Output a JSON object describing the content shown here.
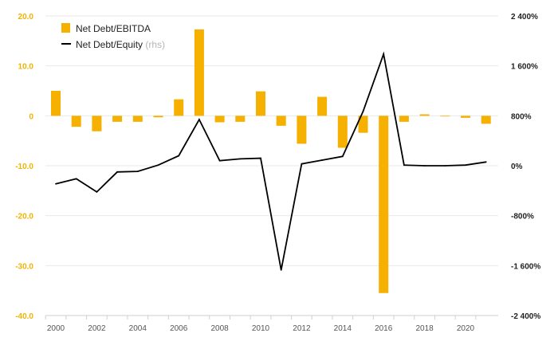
{
  "chart_data": {
    "type": "bar+line",
    "title": "",
    "x": [
      2000,
      2001,
      2002,
      2003,
      2004,
      2005,
      2006,
      2007,
      2008,
      2009,
      2010,
      2011,
      2012,
      2013,
      2014,
      2015,
      2016,
      2017,
      2018,
      2019,
      2020,
      2021
    ],
    "x_tick_labels": [
      "2000",
      "2002",
      "2004",
      "2006",
      "2008",
      "2010",
      "2012",
      "2014",
      "2016",
      "2018",
      "2020"
    ],
    "left_axis": {
      "ylim": [
        -40,
        20
      ],
      "tick_labels": [
        "20.0",
        "10.0",
        "0",
        "-10.0",
        "-20.0",
        "-30.0",
        "-40.0"
      ],
      "tick_values": [
        20,
        10,
        0,
        -10,
        -20,
        -30,
        -40
      ]
    },
    "right_axis": {
      "ylim": [
        -2400,
        2400
      ],
      "tick_labels": [
        "2 400%",
        "1 600%",
        "800%",
        "0%",
        "-800%",
        "-1 600%",
        "-2 400%"
      ],
      "tick_values": [
        2400,
        1600,
        800,
        0,
        -800,
        -1600,
        -2400
      ]
    },
    "series": [
      {
        "name": "Net Debt/EBITDA",
        "axis": "left",
        "type": "bar",
        "color": "#f5b000",
        "values": [
          5.0,
          -2.2,
          -3.1,
          -1.2,
          -1.2,
          -0.3,
          3.3,
          17.3,
          -1.3,
          -1.2,
          4.9,
          -2.0,
          -5.6,
          3.8,
          -6.4,
          -3.4,
          -35.5,
          -1.2,
          0.3,
          -0.1,
          -0.4,
          -1.6
        ]
      },
      {
        "name": "Net Debt/Equity",
        "axis": "right",
        "type": "line",
        "color": "#000000",
        "values": [
          -290,
          -210,
          -420,
          -100,
          -90,
          10,
          160,
          740,
          80,
          110,
          120,
          -1670,
          30,
          90,
          150,
          870,
          1790,
          10,
          0,
          0,
          10,
          60
        ]
      }
    ],
    "legend": {
      "position": "top-left",
      "entries": [
        {
          "label": "Net Debt/EBITDA",
          "suffix": ""
        },
        {
          "label": "Net Debt/Equity",
          "suffix": " (rhs)"
        }
      ]
    }
  }
}
